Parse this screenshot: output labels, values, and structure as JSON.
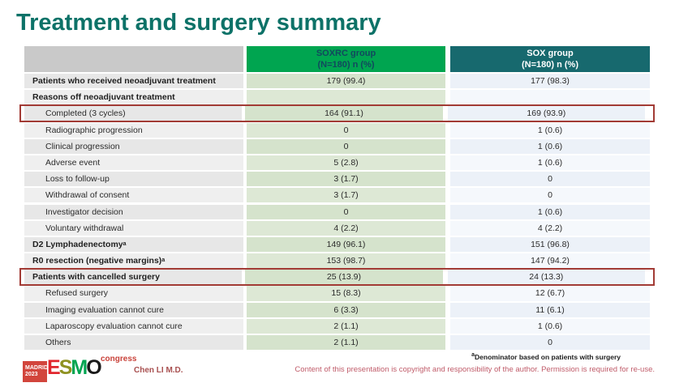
{
  "slide": {
    "title": "Treatment and surgery summary",
    "colors": {
      "title_teal": "#0d7268",
      "header_green": "#00a550",
      "header_teal": "#17696e",
      "header_green_text": "#12485e",
      "label_cell_gray": "#e7e7e7",
      "soxrc_cell_green": "#d5e3cc",
      "sox_cell_blue": "#ecf1f8",
      "highlight_red": "#a23b35",
      "copyright_pink": "#c05c6a",
      "author_red": "#a85050"
    }
  },
  "table": {
    "header": {
      "soxrc": {
        "line1": "SOXRC group",
        "line2": "(N=180)  n (%)"
      },
      "sox": {
        "line1": "SOX group",
        "line2": "(N=180)  n (%)"
      }
    },
    "rows": [
      {
        "label": "Patients who received neoadjuvant treatment",
        "sup": "",
        "soxrc": "179 (99.4)",
        "sox": "177 (98.3)",
        "bold": true,
        "indent": false,
        "highlight": false
      },
      {
        "label": "Reasons off neoadjuvant treatment",
        "sup": "",
        "soxrc": "",
        "sox": "",
        "bold": true,
        "indent": false,
        "highlight": false
      },
      {
        "label": "Completed (3 cycles)",
        "sup": "",
        "soxrc": "164 (91.1)",
        "sox": "169 (93.9)",
        "bold": false,
        "indent": true,
        "highlight": true
      },
      {
        "label": "Radiographic progression",
        "sup": "",
        "soxrc": "0",
        "sox": "1 (0.6)",
        "bold": false,
        "indent": true,
        "highlight": false
      },
      {
        "label": "Clinical progression",
        "sup": "",
        "soxrc": "0",
        "sox": "1 (0.6)",
        "bold": false,
        "indent": true,
        "highlight": false
      },
      {
        "label": "Adverse event",
        "sup": "",
        "soxrc": "5 (2.8)",
        "sox": "1 (0.6)",
        "bold": false,
        "indent": true,
        "highlight": false
      },
      {
        "label": "Loss to follow-up",
        "sup": "",
        "soxrc": "3 (1.7)",
        "sox": "0",
        "bold": false,
        "indent": true,
        "highlight": false
      },
      {
        "label": "Withdrawal of consent",
        "sup": "",
        "soxrc": "3 (1.7)",
        "sox": "0",
        "bold": false,
        "indent": true,
        "highlight": false
      },
      {
        "label": "Investigator decision",
        "sup": "",
        "soxrc": "0",
        "sox": "1 (0.6)",
        "bold": false,
        "indent": true,
        "highlight": false
      },
      {
        "label": "Voluntary withdrawal",
        "sup": "",
        "soxrc": "4 (2.2)",
        "sox": "4 (2.2)",
        "bold": false,
        "indent": true,
        "highlight": false
      },
      {
        "label": "D2 Lymphadenectomy",
        "sup": "a",
        "soxrc": "149 (96.1)",
        "sox": "151 (96.8)",
        "bold": true,
        "indent": false,
        "highlight": false
      },
      {
        "label": "R0 resection (negative margins)",
        "sup": "a",
        "soxrc": "153 (98.7)",
        "sox": "147 (94.2)",
        "bold": true,
        "indent": false,
        "highlight": false
      },
      {
        "label": "Patients with cancelled surgery",
        "sup": "",
        "soxrc": "25 (13.9)",
        "sox": "24 (13.3)",
        "bold": true,
        "indent": false,
        "highlight": true
      },
      {
        "label": "Refused surgery",
        "sup": "",
        "soxrc": "15 (8.3)",
        "sox": "12 (6.7)",
        "bold": false,
        "indent": true,
        "highlight": false
      },
      {
        "label": "Imaging evaluation cannot cure",
        "sup": "",
        "soxrc": "6 (3.3)",
        "sox": "11 (6.1)",
        "bold": false,
        "indent": true,
        "highlight": false
      },
      {
        "label": "Laparoscopy evaluation cannot cure",
        "sup": "",
        "soxrc": "2 (1.1)",
        "sox": "1 (0.6)",
        "bold": false,
        "indent": true,
        "highlight": false
      },
      {
        "label": "Others",
        "sup": "",
        "soxrc": "2 (1.1)",
        "sox": "0",
        "bold": false,
        "indent": true,
        "highlight": false
      }
    ]
  },
  "footer": {
    "logo": {
      "badge_line1": "MADRID",
      "badge_line2": "2023",
      "letters": [
        {
          "ch": "E",
          "color": "#e0262d"
        },
        {
          "ch": "S",
          "color": "#8f9222"
        },
        {
          "ch": "M",
          "color": "#00a551"
        },
        {
          "ch": "O",
          "color": "#1a1a1a"
        }
      ],
      "congress": "congress"
    },
    "author": "Chen LI M.D.",
    "footnote_sup": "a",
    "footnote_text": "Denominator based on patients with surgery",
    "copyright": "Content of this presentation is copyright and responsibility of the author.  Permission is required for re-use."
  }
}
